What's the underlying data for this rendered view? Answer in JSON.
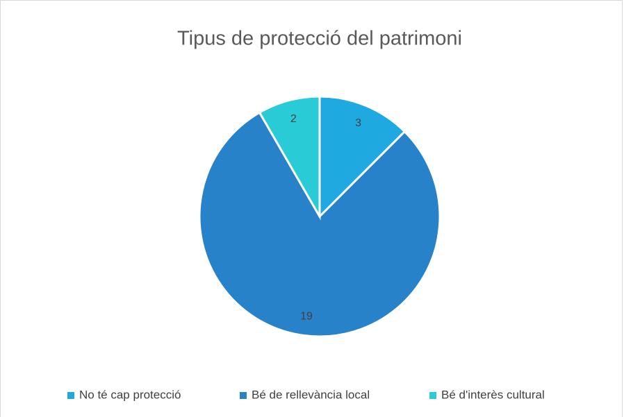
{
  "chart_data": {
    "type": "pie",
    "title": "Tipus de protecció del patrimoni",
    "categories": [
      "No té cap protecció",
      "Bé de rellevància local",
      "Bé d'interès cultural"
    ],
    "values": [
      3,
      19,
      2
    ],
    "colors": [
      "#1fa9e1",
      "#2782c9",
      "#29ccd6"
    ],
    "legend": "bottom"
  }
}
